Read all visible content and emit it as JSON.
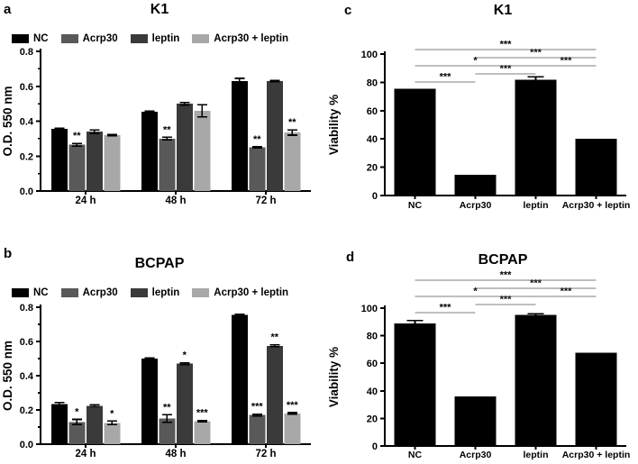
{
  "colors": {
    "nc": "#000000",
    "acrp30": "#595959",
    "leptin": "#3a3a3a",
    "acrp30_leptin": "#a8a8a8",
    "significance_line": "#7f7f7f",
    "axis": "#000000"
  },
  "chart_data": [
    {
      "id": "a",
      "letter": "a",
      "title": "K1",
      "type": "grouped_bar",
      "ylabel": "O.D. 550 nm",
      "ylim": [
        0,
        0.8
      ],
      "yticks": [
        "0.0",
        "0.2",
        "0.4",
        "0.6",
        "0.8"
      ],
      "yminor": 0.1,
      "grid": false,
      "legend_position": "top",
      "categories": [
        "24 h",
        "48 h",
        "72 h"
      ],
      "legend": [
        "NC",
        "Acrp30",
        "leptin",
        "Acrp30 + leptin"
      ],
      "series": [
        {
          "name": "NC",
          "color": "#000000",
          "values": [
            0.355,
            0.455,
            0.63
          ],
          "errors": [
            0.004,
            0.004,
            0.015
          ],
          "sig": [
            "",
            "",
            ""
          ]
        },
        {
          "name": "Acrp30",
          "color": "#595959",
          "values": [
            0.265,
            0.3,
            0.25
          ],
          "errors": [
            0.008,
            0.008,
            0.004
          ],
          "sig": [
            "**",
            "**",
            "**"
          ]
        },
        {
          "name": "leptin",
          "color": "#3a3a3a",
          "values": [
            0.34,
            0.5,
            0.63
          ],
          "errors": [
            0.01,
            0.008,
            0.004
          ],
          "sig": [
            "",
            "",
            ""
          ]
        },
        {
          "name": "Acrp30 + leptin",
          "color": "#a8a8a8",
          "values": [
            0.32,
            0.46,
            0.335
          ],
          "errors": [
            0.004,
            0.035,
            0.015
          ],
          "sig": [
            "",
            "",
            "**"
          ]
        }
      ]
    },
    {
      "id": "b",
      "letter": "b",
      "title": "BCPAP",
      "type": "grouped_bar",
      "ylabel": "O.D. 550 nm",
      "ylim": [
        0,
        0.8
      ],
      "yticks": [
        "0.0",
        "0.2",
        "0.4",
        "0.6",
        "0.8"
      ],
      "yminor": 0.1,
      "grid": false,
      "legend_position": "top",
      "categories": [
        "24 h",
        "48 h",
        "72 h"
      ],
      "legend": [
        "NC",
        "Acrp30",
        "leptin",
        "Acrp30 + leptin"
      ],
      "series": [
        {
          "name": "NC",
          "color": "#000000",
          "values": [
            0.235,
            0.5,
            0.755
          ],
          "errors": [
            0.008,
            0.004,
            0.004
          ],
          "sig": [
            "",
            "",
            ""
          ]
        },
        {
          "name": "Acrp30",
          "color": "#595959",
          "values": [
            0.13,
            0.15,
            0.17
          ],
          "errors": [
            0.015,
            0.022,
            0.006
          ],
          "sig": [
            "*",
            "**",
            "***"
          ]
        },
        {
          "name": "leptin",
          "color": "#3a3a3a",
          "values": [
            0.225,
            0.47,
            0.575
          ],
          "errors": [
            0.006,
            0.006,
            0.006
          ],
          "sig": [
            "",
            "*",
            "**"
          ]
        },
        {
          "name": "Acrp30 + leptin",
          "color": "#a8a8a8",
          "values": [
            0.125,
            0.135,
            0.18
          ],
          "errors": [
            0.01,
            0.004,
            0.004
          ],
          "sig": [
            "*",
            "***",
            "***"
          ]
        }
      ]
    },
    {
      "id": "c",
      "letter": "c",
      "title": "K1",
      "type": "bar",
      "ylabel": "Viability %",
      "ylim": [
        0,
        100
      ],
      "yticks": [
        "0",
        "20",
        "40",
        "60",
        "80",
        "100"
      ],
      "grid": false,
      "bar_color": "#000000",
      "categories": [
        "NC",
        "Acrp30",
        "leptin",
        "Acrp30 + leptin"
      ],
      "values": [
        75.5,
        14.5,
        82,
        40
      ],
      "errors": [
        0,
        0,
        2,
        0
      ],
      "comparisons": [
        {
          "a": 0,
          "b": 1,
          "label": "***",
          "level": 1
        },
        {
          "a": 1,
          "b": 2,
          "label": "***",
          "level": 2
        },
        {
          "a": 0,
          "b": 2,
          "label": "*",
          "level": 3
        },
        {
          "a": 2,
          "b": 3,
          "label": "***",
          "level": 3
        },
        {
          "a": 1,
          "b": 3,
          "label": "***",
          "level": 4
        },
        {
          "a": 0,
          "b": 3,
          "label": "***",
          "level": 5
        }
      ]
    },
    {
      "id": "d",
      "letter": "d",
      "title": "BCPAP",
      "type": "bar",
      "ylabel": "Viability %",
      "ylim": [
        0,
        100
      ],
      "yticks": [
        "0",
        "20",
        "40",
        "60",
        "80",
        "100"
      ],
      "grid": false,
      "bar_color": "#000000",
      "categories": [
        "NC",
        "Acrp30",
        "leptin",
        "Acrp30 + leptin"
      ],
      "values": [
        89,
        36,
        95,
        67.5
      ],
      "errors": [
        2,
        0,
        1,
        0
      ],
      "comparisons": [
        {
          "a": 0,
          "b": 1,
          "label": "***",
          "level": 1
        },
        {
          "a": 1,
          "b": 2,
          "label": "***",
          "level": 2
        },
        {
          "a": 0,
          "b": 2,
          "label": "*",
          "level": 3
        },
        {
          "a": 2,
          "b": 3,
          "label": "***",
          "level": 3
        },
        {
          "a": 1,
          "b": 3,
          "label": "***",
          "level": 4
        },
        {
          "a": 0,
          "b": 3,
          "label": "***",
          "level": 5
        }
      ]
    }
  ]
}
